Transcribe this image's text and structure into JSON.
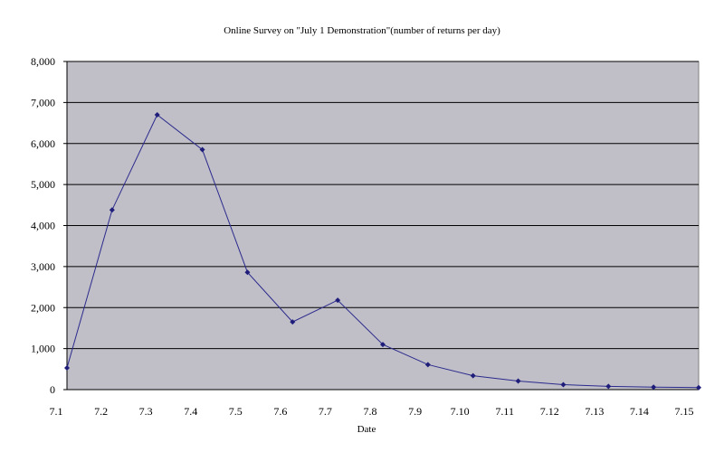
{
  "chart_data": {
    "type": "line",
    "title": "Online Survey on \"July 1 Demonstration\"(number of returns per day)",
    "xlabel": "Date",
    "ylabel": "",
    "categories": [
      "7.1",
      "7.2",
      "7.3",
      "7.4",
      "7.5",
      "7.6",
      "7.7",
      "7.8",
      "7.9",
      "7.10",
      "7.11",
      "7.12",
      "7.13",
      "7.14",
      "7.15"
    ],
    "y_ticks": [
      "0",
      "1,000",
      "2,000",
      "3,000",
      "4,000",
      "5,000",
      "6,000",
      "7,000",
      "8,000"
    ],
    "ylim": [
      0,
      8000
    ],
    "grid": true,
    "legend": "none",
    "series": [
      {
        "name": "",
        "values": [
          530,
          4380,
          6700,
          5850,
          2860,
          1650,
          2180,
          1100,
          610,
          340,
          210,
          120,
          80,
          60,
          50
        ]
      }
    ],
    "colors": {
      "plot_background": "#c0bfc8",
      "gridline": "#000000",
      "line": "#2b2a8c",
      "marker": "#1f1d7a"
    }
  }
}
